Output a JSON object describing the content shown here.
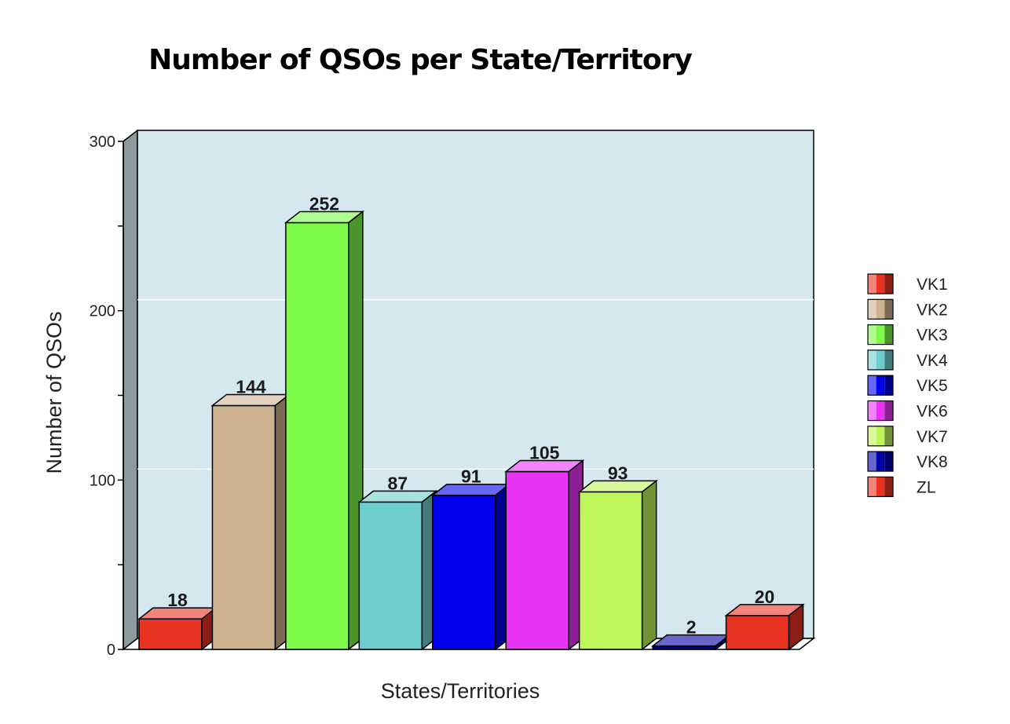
{
  "chart_data": {
    "type": "bar",
    "title": "Number of QSOs per State/Territory",
    "xlabel": "States/Territories",
    "ylabel": "Number of QSOs",
    "ylim": [
      0,
      300
    ],
    "yticks": [
      0,
      100,
      200,
      300
    ],
    "grid": true,
    "legend_position": "right",
    "categories": [
      "VK1",
      "VK2",
      "VK3",
      "VK4",
      "VK5",
      "VK6",
      "VK7",
      "VK8",
      "ZL"
    ],
    "values": [
      18,
      144,
      252,
      87,
      91,
      105,
      93,
      2,
      20
    ],
    "colors": [
      "#e83323",
      "#cdb38f",
      "#7dfa4a",
      "#70cdcd",
      "#0000ee",
      "#e833f5",
      "#bdf55a",
      "#0000a8",
      "#e83323"
    ]
  }
}
